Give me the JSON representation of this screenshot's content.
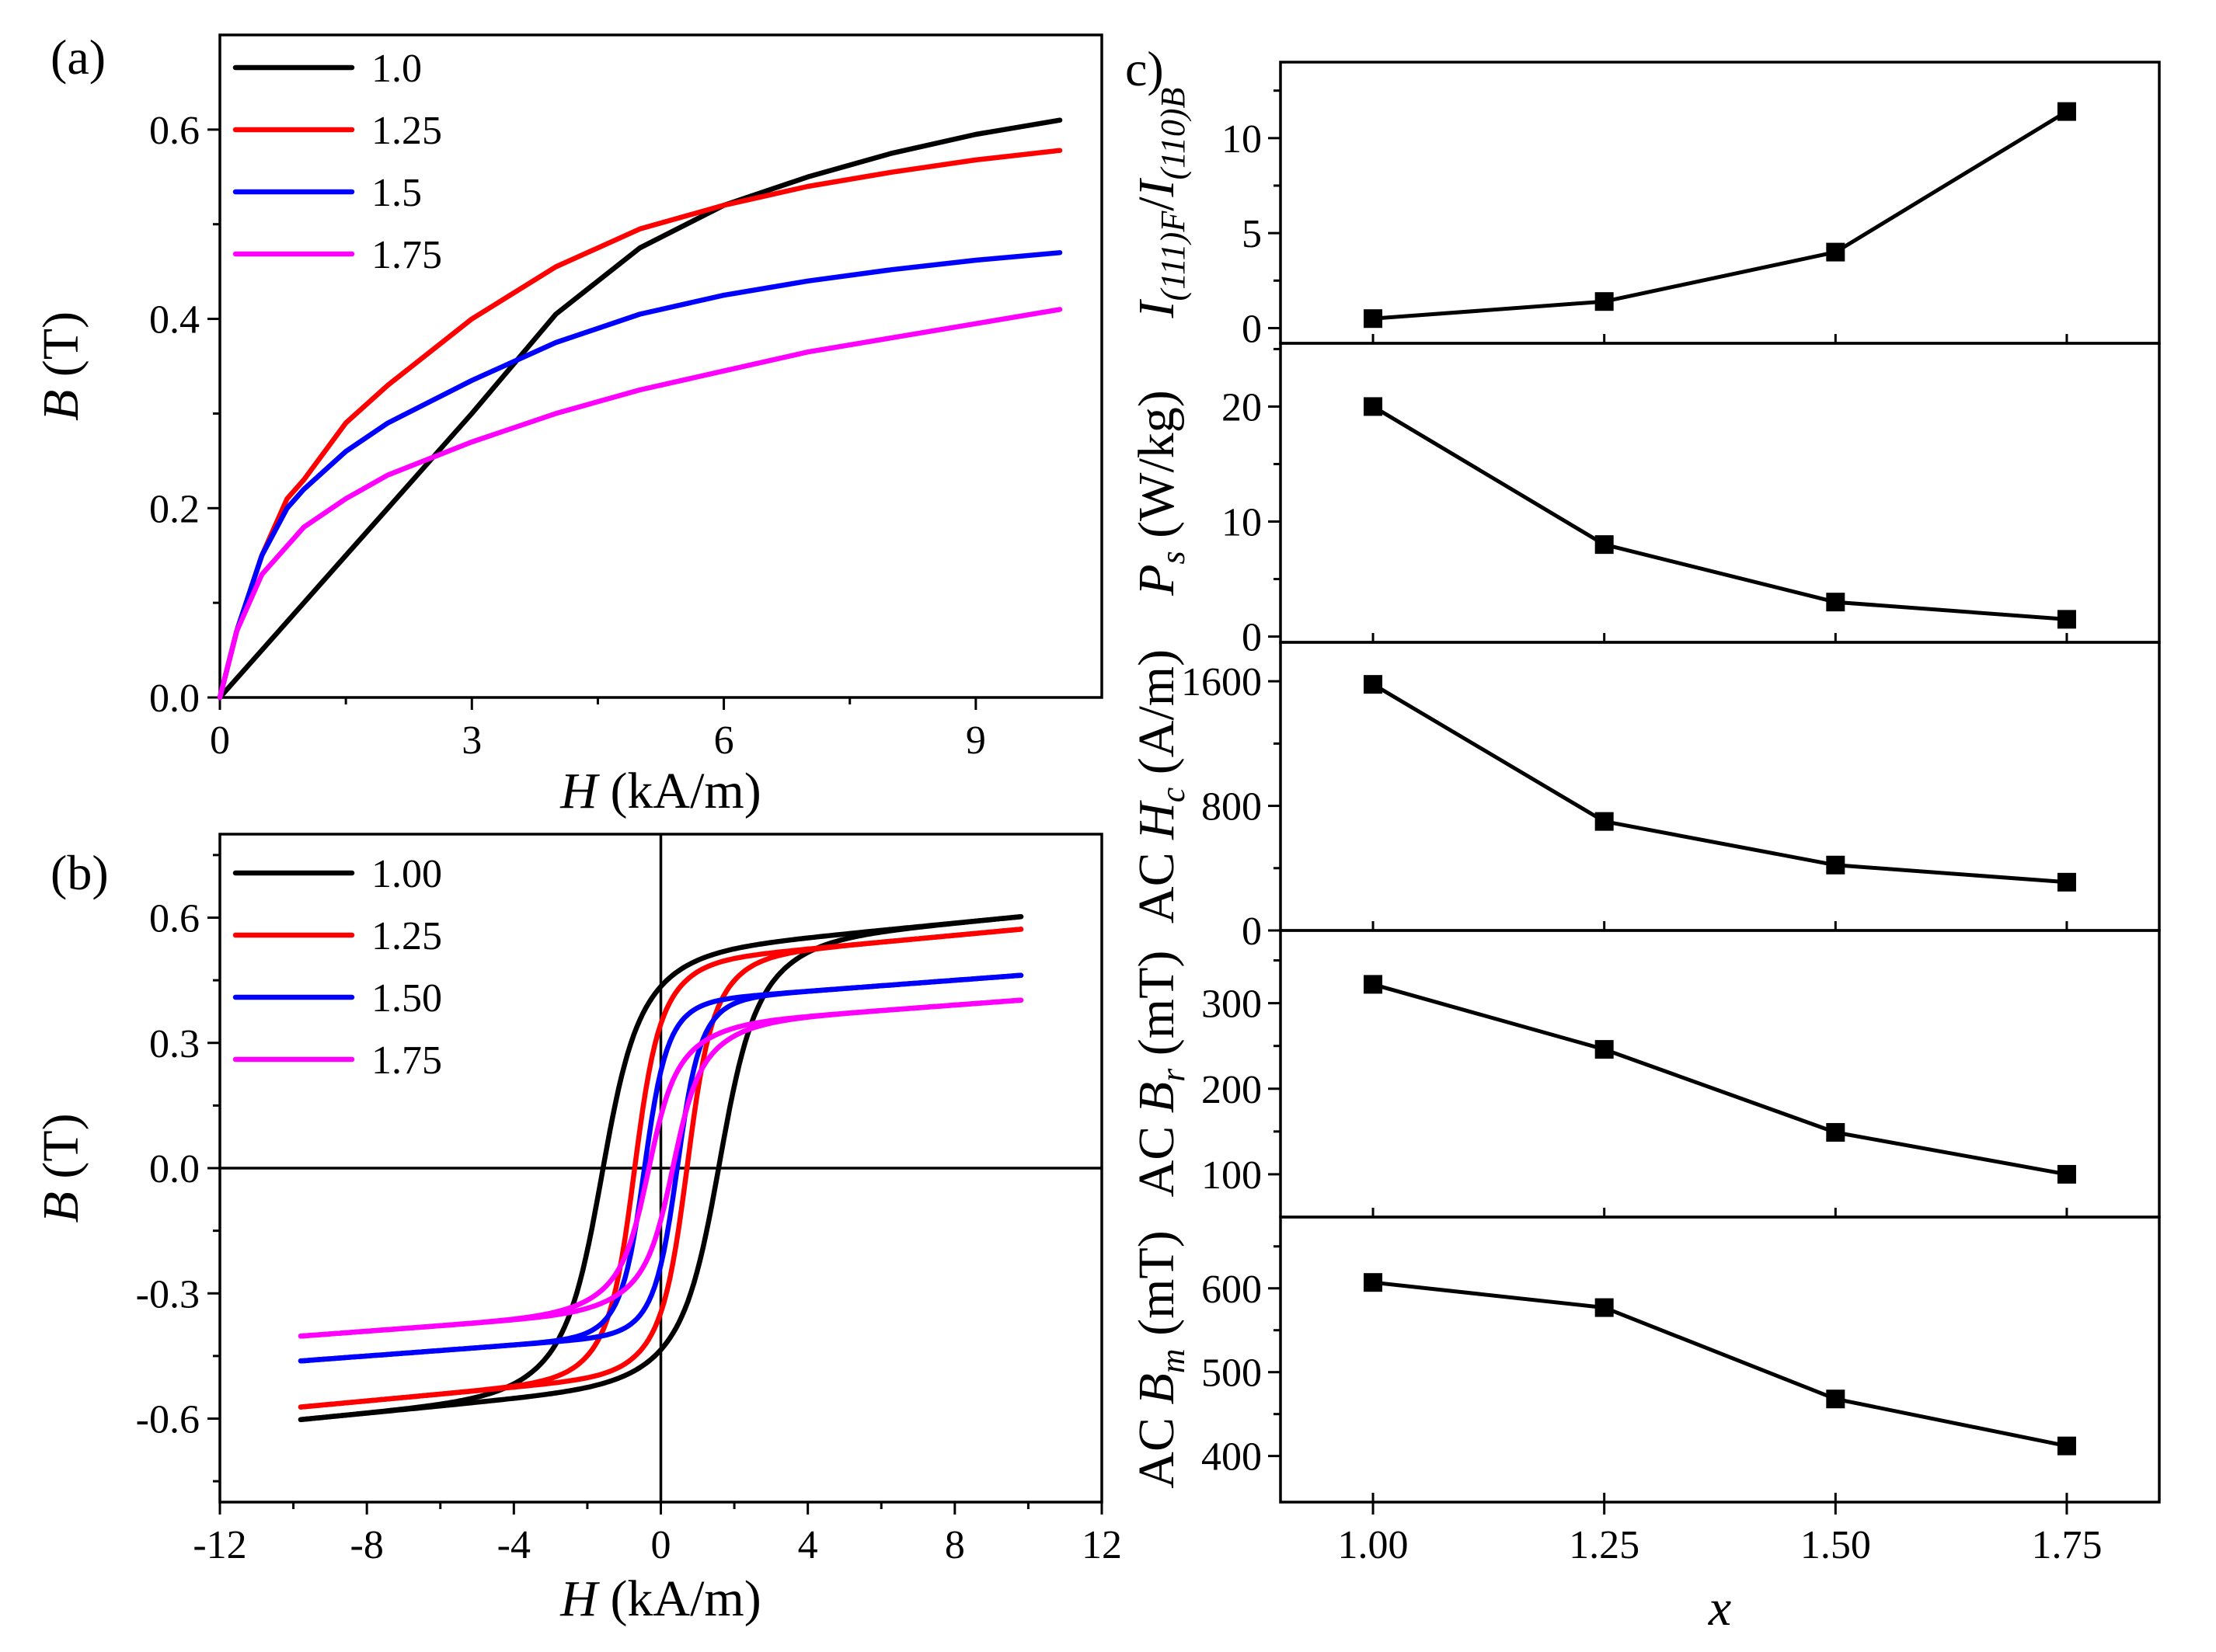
{
  "colors": {
    "1.0": "#000000",
    "1.25": "#ff0000",
    "1.5": "#0000ff",
    "1.75": "#ff00ff"
  },
  "chart_data": [
    {
      "panel": "(a)",
      "type": "line",
      "title": "",
      "xlabel": "H (kA/m)",
      "ylabel": "B (T)",
      "xlabel_parts": {
        "symbol": "H",
        "unit": " (kA/m)"
      },
      "ylabel_parts": {
        "symbol": "B",
        "unit": " (T)"
      },
      "xlim": [
        0,
        10.5
      ],
      "ylim": [
        0,
        0.7
      ],
      "xticks": [
        0,
        3,
        6,
        9
      ],
      "xtick_labels": [
        "0",
        "3",
        "6",
        "9"
      ],
      "yticks": [
        0,
        0.2,
        0.4,
        0.6
      ],
      "ytick_labels": [
        "0.0",
        "0.2",
        "0.4",
        "0.6"
      ],
      "legend": "top-left",
      "series": [
        {
          "name": "1.0",
          "color": "#000000",
          "x": [
            0,
            0.2,
            0.5,
            1,
            1.5,
            2,
            2.5,
            3,
            4,
            5,
            6,
            7,
            8,
            9,
            10
          ],
          "y": [
            0,
            0.02,
            0.05,
            0.1,
            0.15,
            0.2,
            0.25,
            0.3,
            0.405,
            0.475,
            0.52,
            0.55,
            0.575,
            0.595,
            0.61
          ]
        },
        {
          "name": "1.25",
          "color": "#ff0000",
          "x": [
            0,
            0.2,
            0.5,
            0.8,
            1,
            1.5,
            2,
            3,
            4,
            5,
            6,
            7,
            8,
            9,
            10
          ],
          "y": [
            0,
            0.07,
            0.15,
            0.21,
            0.23,
            0.29,
            0.33,
            0.4,
            0.455,
            0.495,
            0.52,
            0.54,
            0.555,
            0.568,
            0.578
          ]
        },
        {
          "name": "1.5",
          "color": "#0000ff",
          "x": [
            0,
            0.2,
            0.5,
            0.8,
            1,
            1.5,
            2,
            3,
            4,
            5,
            6,
            7,
            8,
            9,
            10
          ],
          "y": [
            0,
            0.07,
            0.15,
            0.2,
            0.22,
            0.26,
            0.29,
            0.335,
            0.375,
            0.405,
            0.425,
            0.44,
            0.452,
            0.462,
            0.47
          ]
        },
        {
          "name": "1.75",
          "color": "#ff00ff",
          "x": [
            0,
            0.2,
            0.5,
            0.8,
            1,
            1.5,
            2,
            3,
            4,
            5,
            6,
            7,
            8,
            9,
            10
          ],
          "y": [
            0,
            0.07,
            0.13,
            0.16,
            0.18,
            0.21,
            0.235,
            0.27,
            0.3,
            0.325,
            0.345,
            0.365,
            0.38,
            0.395,
            0.41
          ]
        }
      ]
    },
    {
      "panel": "(b)",
      "type": "line",
      "title": "",
      "xlabel": "H (kA/m)",
      "ylabel": "B (T)",
      "xlabel_parts": {
        "symbol": "H",
        "unit": " (kA/m)"
      },
      "ylabel_parts": {
        "symbol": "B",
        "unit": " (T)"
      },
      "xlim": [
        -12,
        12
      ],
      "ylim": [
        -0.8,
        0.8
      ],
      "xticks": [
        -12,
        -8,
        -4,
        0,
        4,
        8,
        12
      ],
      "xtick_labels": [
        "-12",
        "-8",
        "-4",
        "0",
        "4",
        "8",
        "12"
      ],
      "yticks": [
        -0.6,
        -0.3,
        0,
        0.3,
        0.6
      ],
      "ytick_labels": [
        "-0.6",
        "-0.3",
        "0.0",
        "0.3",
        "0.6"
      ],
      "legend": "top-left",
      "series": [
        {
          "name": "1.00",
          "color": "#000000",
          "Hc": 1.6,
          "Bs": 0.6,
          "Hw": 0.8,
          "Hs": 1.9,
          "a": 0.1,
          "Bb": 0.04
        },
        {
          "name": "1.25",
          "color": "#ff0000",
          "Hc": 0.72,
          "Bs": 0.57,
          "Hw": 0.55,
          "Hs": 1.3,
          "a": 0.1,
          "Bb": 0.04
        },
        {
          "name": "1.50",
          "color": "#0000ff",
          "Hc": 0.45,
          "Bs": 0.46,
          "Hw": 0.5,
          "Hs": 1.0,
          "a": 0.1,
          "Bb": 0.04
        },
        {
          "name": "1.75",
          "color": "#ff00ff",
          "Hc": 0.33,
          "Bs": 0.4,
          "Hw": 0.6,
          "Hs": 1.6,
          "a": 0.1,
          "Bb": 0.06
        }
      ]
    },
    {
      "panel": "c)",
      "type": "line",
      "title": "",
      "xlabel": "x",
      "x": [
        1.0,
        1.25,
        1.5,
        1.75
      ],
      "xlim": [
        0.9,
        1.85
      ],
      "xticks": [
        1.0,
        1.25,
        1.5,
        1.75
      ],
      "xtick_labels": [
        "1.00",
        "1.25",
        "1.50",
        "1.75"
      ],
      "subplots": [
        {
          "key": "ratio",
          "ylabel": "I(111)F/I(110)B",
          "ylabel_parts": [
            {
              "t": "I",
              "i": true
            },
            {
              "t": "(111)F",
              "sub": true,
              "i": true
            },
            {
              "t": "/"
            },
            {
              "t": "I",
              "i": true
            },
            {
              "t": "(110)B",
              "sub": true,
              "i": true
            }
          ],
          "values": [
            0.5,
            1.4,
            4.0,
            11.4
          ],
          "ylim": [
            -0.8,
            14
          ],
          "yticks": [
            0,
            5,
            10
          ],
          "ytick_labels": [
            "0",
            "5",
            "10"
          ]
        },
        {
          "key": "Ps",
          "ylabel": "Ps (W/kg)",
          "ylabel_parts": [
            {
              "t": "P",
              "i": true
            },
            {
              "t": "s",
              "sub": true,
              "i": true
            },
            {
              "t": " (W/kg)"
            }
          ],
          "values": [
            20,
            8,
            3,
            1.5
          ],
          "ylim": [
            -0.5,
            25.5
          ],
          "yticks": [
            0,
            10,
            20
          ],
          "ytick_labels": [
            "0",
            "10",
            "20"
          ]
        },
        {
          "key": "Hc",
          "ylabel": "AC Hc (A/m)",
          "ylabel_parts": [
            {
              "t": "AC "
            },
            {
              "t": "H",
              "i": true
            },
            {
              "t": "c",
              "sub": true,
              "i": true
            },
            {
              "t": " (A/m)"
            }
          ],
          "values": [
            1580,
            700,
            420,
            310
          ],
          "ylim": [
            0,
            1850
          ],
          "yticks": [
            0,
            800,
            1600
          ],
          "ytick_labels": [
            "0",
            "800",
            "1600"
          ]
        },
        {
          "key": "Br",
          "ylabel": "AC Br (mT)",
          "ylabel_parts": [
            {
              "t": "AC "
            },
            {
              "t": "B",
              "i": true
            },
            {
              "t": "r",
              "sub": true,
              "i": true
            },
            {
              "t": " (mT)"
            }
          ],
          "values": [
            322,
            246,
            149,
            100
          ],
          "ylim": [
            50,
            385
          ],
          "yticks": [
            100,
            200,
            300
          ],
          "ytick_labels": [
            "100",
            "200",
            "300"
          ]
        },
        {
          "key": "Bm",
          "ylabel": "AC Bm (mT)",
          "ylabel_parts": [
            {
              "t": "AC "
            },
            {
              "t": "B",
              "i": true
            },
            {
              "t": "m",
              "sub": true,
              "i": true
            },
            {
              "t": " (mT)"
            }
          ],
          "values": [
            607,
            577,
            468,
            412
          ],
          "ylim": [
            345,
            685
          ],
          "yticks": [
            400,
            500,
            600
          ],
          "ytick_labels": [
            "400",
            "500",
            "600"
          ]
        }
      ]
    }
  ]
}
